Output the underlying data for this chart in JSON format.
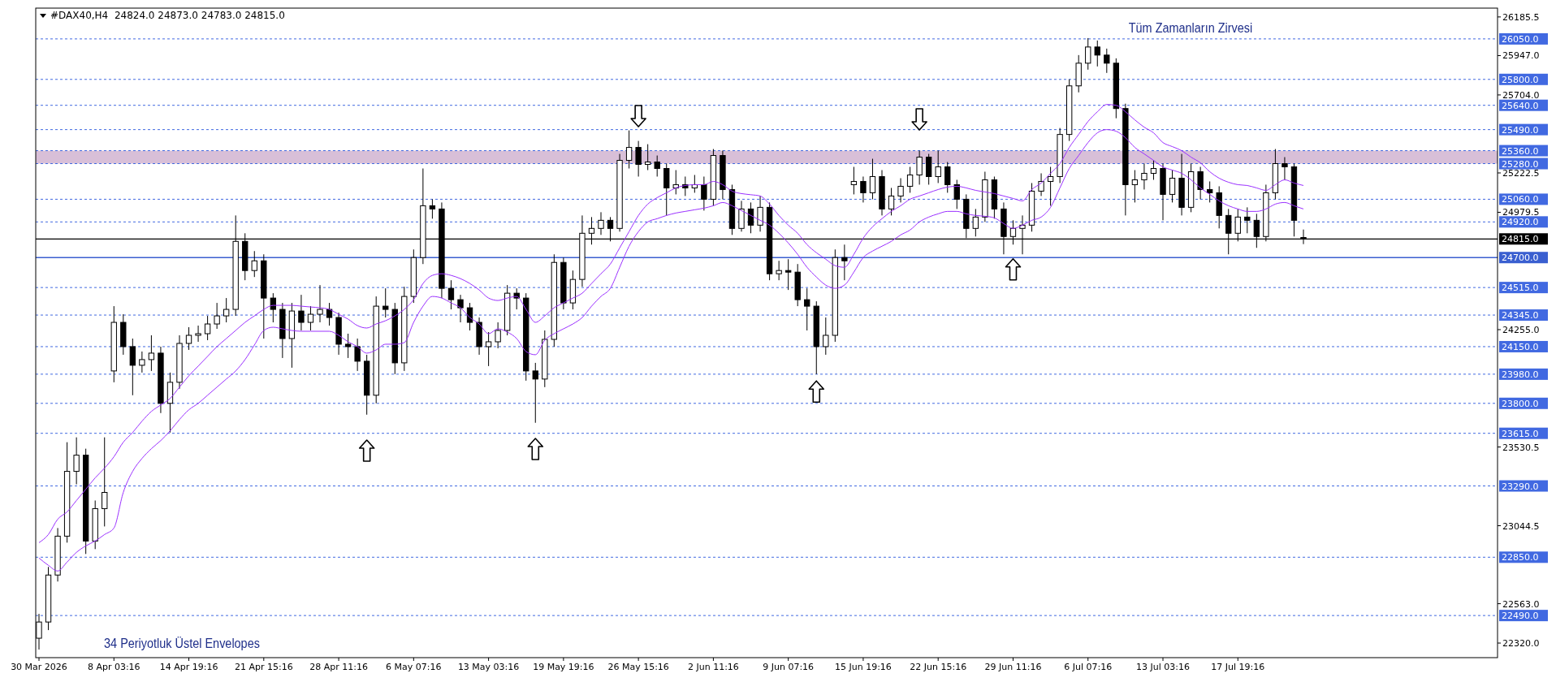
{
  "chart_data": {
    "type": "candlestick",
    "title": "#DAX40,H4  24824.0 24873.0 24783.0 24815.0",
    "annotations": [
      "Tüm Zamanların Zirvesi",
      "34 Periyotluk Üstel Envelopes"
    ],
    "categories": [
      "30 Mar 2026",
      null,
      null,
      null,
      null,
      null,
      null,
      null,
      "8 Apr 03:16",
      null,
      null,
      null,
      null,
      null,
      null,
      null,
      "14 Apr 19:16",
      null,
      null,
      null,
      null,
      null,
      null,
      null,
      "21 Apr 15:16",
      null,
      null,
      null,
      null,
      null,
      null,
      null,
      "28 Apr 11:16",
      null,
      null,
      null,
      null,
      null,
      null,
      null,
      "6 May 07:16",
      null,
      null,
      null,
      null,
      null,
      null,
      null,
      "13 May 03:16",
      null,
      null,
      null,
      null,
      null,
      null,
      null,
      "19 May 19:16",
      null,
      null,
      null,
      null,
      null,
      null,
      null,
      "26 May 15:16",
      null,
      null,
      null,
      null,
      null,
      null,
      null,
      "2 Jun 11:16",
      null,
      null,
      null,
      null,
      null,
      null,
      null,
      "9 Jun 07:16",
      null,
      null,
      null,
      null,
      null,
      null,
      null,
      "15 Jun 19:16",
      null,
      null,
      null,
      null,
      null,
      null,
      null,
      "22 Jun 15:16",
      null,
      null,
      null,
      null,
      null,
      null,
      null,
      "29 Jun 11:16",
      null,
      null,
      null,
      null,
      null,
      null,
      null,
      "6 Jul 07:16",
      null,
      null,
      null,
      null,
      null,
      null,
      null,
      "13 Jul 03:16",
      null,
      null,
      null,
      null,
      null,
      null,
      null,
      "17 Jul 19:16",
      null,
      null,
      null,
      null,
      null,
      null,
      null
    ],
    "ohlc": [
      [
        22350,
        22500,
        22280,
        22450
      ],
      [
        22450,
        22790,
        22400,
        22740
      ],
      [
        22740,
        23030,
        22700,
        22980
      ],
      [
        22980,
        23560,
        22940,
        23380
      ],
      [
        23380,
        23590,
        23300,
        23480
      ],
      [
        23480,
        23520,
        22870,
        22950
      ],
      [
        22950,
        23200,
        22900,
        23150
      ],
      [
        23150,
        23590,
        23040,
        23250
      ],
      [
        24000,
        24400,
        23930,
        24300
      ],
      [
        24300,
        24350,
        24100,
        24150
      ],
      [
        24150,
        24200,
        23850,
        24035
      ],
      [
        24035,
        24120,
        23990,
        24070
      ],
      [
        24070,
        24220,
        24000,
        24110
      ],
      [
        24110,
        24150,
        23740,
        23800
      ],
      [
        23800,
        23990,
        23620,
        23930
      ],
      [
        23930,
        24220,
        23890,
        24170
      ],
      [
        24170,
        24270,
        24130,
        24220
      ],
      [
        24220,
        24280,
        24180,
        24230
      ],
      [
        24230,
        24340,
        24190,
        24290
      ],
      [
        24290,
        24420,
        24260,
        24340
      ],
      [
        24340,
        24450,
        24300,
        24380
      ],
      [
        24380,
        24960,
        24340,
        24800
      ],
      [
        24800,
        24850,
        24560,
        24620
      ],
      [
        24620,
        24740,
        24580,
        24680
      ],
      [
        24680,
        24720,
        24200,
        24450
      ],
      [
        24450,
        24480,
        24300,
        24380
      ],
      [
        24380,
        24420,
        24080,
        24200
      ],
      [
        24200,
        24420,
        24020,
        24370
      ],
      [
        24370,
        24470,
        24250,
        24300
      ],
      [
        24300,
        24400,
        24250,
        24350
      ],
      [
        24350,
        24530,
        24300,
        24380
      ],
      [
        24380,
        24420,
        24280,
        24330
      ],
      [
        24330,
        24360,
        24100,
        24165
      ],
      [
        24165,
        24230,
        24080,
        24150
      ],
      [
        24150,
        24200,
        24000,
        24060
      ],
      [
        24060,
        24100,
        23730,
        23850
      ],
      [
        23850,
        24460,
        23800,
        24400
      ],
      [
        24400,
        24510,
        24330,
        24380
      ],
      [
        24380,
        24420,
        23980,
        24050
      ],
      [
        24050,
        24520,
        24000,
        24460
      ],
      [
        24460,
        24750,
        24420,
        24700
      ],
      [
        24700,
        25250,
        24660,
        25020
      ],
      [
        25020,
        25060,
        24940,
        25000
      ],
      [
        25000,
        25040,
        24450,
        24510
      ],
      [
        24510,
        24560,
        24380,
        24440
      ],
      [
        24440,
        24470,
        24300,
        24390
      ],
      [
        24390,
        24420,
        24250,
        24300
      ],
      [
        24300,
        24330,
        24100,
        24150
      ],
      [
        24150,
        24240,
        24030,
        24180
      ],
      [
        24180,
        24300,
        24140,
        24250
      ],
      [
        24250,
        24530,
        24220,
        24480
      ],
      [
        24480,
        24510,
        24380,
        24450
      ],
      [
        24450,
        24480,
        23940,
        24000
      ],
      [
        24000,
        24050,
        23680,
        23950
      ],
      [
        23950,
        24250,
        23900,
        24195
      ],
      [
        24195,
        24720,
        24150,
        24670
      ],
      [
        24670,
        24700,
        24380,
        24420
      ],
      [
        24420,
        24620,
        24380,
        24565
      ],
      [
        24565,
        24960,
        24520,
        24850
      ],
      [
        24850,
        24950,
        24780,
        24880
      ],
      [
        24880,
        24980,
        24840,
        24930
      ],
      [
        24930,
        24950,
        24800,
        24880
      ],
      [
        24880,
        25340,
        24860,
        25300
      ],
      [
        25300,
        25485,
        25250,
        25380
      ],
      [
        25380,
        25420,
        25200,
        25275
      ],
      [
        25275,
        25400,
        25240,
        25290
      ],
      [
        25290,
        25330,
        25200,
        25250
      ],
      [
        25250,
        25280,
        24960,
        25130
      ],
      [
        25130,
        25240,
        25090,
        25150
      ],
      [
        25150,
        25200,
        25080,
        25130
      ],
      [
        25130,
        25210,
        25100,
        25150
      ],
      [
        25150,
        25200,
        24990,
        25060
      ],
      [
        25060,
        25370,
        25020,
        25330
      ],
      [
        25330,
        25360,
        25060,
        25120
      ],
      [
        25120,
        25150,
        24840,
        24880
      ],
      [
        24880,
        25050,
        24860,
        25000
      ],
      [
        25000,
        25040,
        24850,
        24900
      ],
      [
        24900,
        25080,
        24860,
        25010
      ],
      [
        25010,
        25040,
        24560,
        24600
      ],
      [
        24600,
        24680,
        24560,
        24620
      ],
      [
        24620,
        24690,
        24500,
        24610
      ],
      [
        24610,
        24660,
        24400,
        24440
      ],
      [
        24440,
        24510,
        24250,
        24400
      ],
      [
        24400,
        24430,
        23980,
        24150
      ],
      [
        24150,
        24330,
        24100,
        24220
      ],
      [
        24220,
        24750,
        24180,
        24700
      ],
      [
        24700,
        24780,
        24560,
        24680
      ],
      [
        25150,
        25260,
        25090,
        25170
      ],
      [
        25170,
        25200,
        25040,
        25100
      ],
      [
        25100,
        25310,
        25060,
        25200
      ],
      [
        25200,
        25240,
        24960,
        25000
      ],
      [
        25000,
        25130,
        24960,
        25080
      ],
      [
        25080,
        25190,
        25040,
        25140
      ],
      [
        25140,
        25260,
        25100,
        25210
      ],
      [
        25210,
        25360,
        25150,
        25320
      ],
      [
        25320,
        25340,
        25150,
        25200
      ],
      [
        25200,
        25360,
        25160,
        25260
      ],
      [
        25260,
        25290,
        25100,
        25150
      ],
      [
        25150,
        25180,
        25000,
        25060
      ],
      [
        25060,
        25090,
        24820,
        24880
      ],
      [
        24880,
        25000,
        24830,
        24950
      ],
      [
        24950,
        25230,
        24920,
        25180
      ],
      [
        25180,
        25200,
        24940,
        25000
      ],
      [
        25000,
        25040,
        24720,
        24830
      ],
      [
        24830,
        24930,
        24780,
        24880
      ],
      [
        24880,
        24960,
        24720,
        24900
      ],
      [
        24900,
        25160,
        24860,
        25110
      ],
      [
        25110,
        25220,
        25080,
        25170
      ],
      [
        25170,
        25260,
        25020,
        25200
      ],
      [
        25200,
        25500,
        25160,
        25460
      ],
      [
        25460,
        25800,
        25420,
        25760
      ],
      [
        25760,
        25950,
        25720,
        25900
      ],
      [
        25900,
        26055,
        25860,
        26000
      ],
      [
        26000,
        26040,
        25880,
        25950
      ],
      [
        25950,
        25990,
        25840,
        25900
      ],
      [
        25900,
        25930,
        25560,
        25620
      ],
      [
        25620,
        25650,
        24960,
        25150
      ],
      [
        25150,
        25240,
        25040,
        25180
      ],
      [
        25180,
        25280,
        25120,
        25220
      ],
      [
        25220,
        25300,
        25180,
        25250
      ],
      [
        25250,
        25280,
        24930,
        25090
      ],
      [
        25090,
        25240,
        25040,
        25190
      ],
      [
        25190,
        25340,
        24960,
        25010
      ],
      [
        25010,
        25280,
        24980,
        25230
      ],
      [
        25230,
        25260,
        25060,
        25120
      ],
      [
        25120,
        25170,
        25040,
        25100
      ],
      [
        25100,
        25140,
        24880,
        24960
      ],
      [
        24960,
        25000,
        24720,
        24850
      ],
      [
        24850,
        25000,
        24800,
        24950
      ],
      [
        24950,
        25010,
        24850,
        24930
      ],
      [
        24930,
        24970,
        24760,
        24830
      ],
      [
        24830,
        25150,
        24800,
        25100
      ],
      [
        25100,
        25370,
        25060,
        25280
      ],
      [
        25280,
        25320,
        25180,
        25260
      ],
      [
        25260,
        25280,
        24830,
        24930
      ],
      [
        24824,
        24873,
        24783,
        24815
      ]
    ],
    "series": [
      {
        "type": "line",
        "color": "#9b30ff",
        "values": [
          22940,
          22990,
          23085,
          23130,
          23200,
          23270,
          23340,
          23400,
          23470,
          23560,
          23620,
          23690,
          23750,
          23790,
          23830,
          23900,
          23970,
          24030,
          24090,
          24150,
          24200,
          24250,
          24300,
          24340,
          24380,
          24405,
          24405,
          24405,
          24400,
          24395,
          24390,
          24380,
          24350,
          24320,
          24280,
          24265,
          24290,
          24310,
          24340,
          24380,
          24440,
          24540,
          24590,
          24600,
          24590,
          24570,
          24540,
          24500,
          24450,
          24435,
          24450,
          24460,
          24380,
          24300,
          24340,
          24390,
          24420,
          24450,
          24480,
          24540,
          24600,
          24660,
          24760,
          24860,
          24960,
          25030,
          25070,
          25100,
          25130,
          25145,
          25150,
          25150,
          25170,
          25150,
          25110,
          25095,
          25088,
          25080,
          25030,
          24960,
          24900,
          24850,
          24780,
          24730,
          24690,
          24650,
          24640,
          24720,
          24820,
          24890,
          24940,
          24985,
          25020,
          25060,
          25080,
          25100,
          25120,
          25135,
          25140,
          25130,
          25115,
          25105,
          25095,
          25080,
          25065,
          25050,
          25120,
          25160,
          25220,
          25280,
          25380,
          25460,
          25540,
          25600,
          25645,
          25640,
          25600,
          25550,
          25505,
          25470,
          25410,
          25385,
          25360,
          25320,
          25285,
          25230,
          25190,
          25165,
          25150,
          25145,
          25130,
          25115,
          25150,
          25180,
          25160,
          25145
        ]
      },
      {
        "type": "line",
        "color": "#9b30ff",
        "values": [
          22845,
          22800,
          22765,
          22820,
          22880,
          22920,
          22950,
          22990,
          23030,
          23250,
          23380,
          23460,
          23520,
          23570,
          23630,
          23700,
          23760,
          23800,
          23850,
          23900,
          23950,
          24000,
          24070,
          24160,
          24250,
          24270,
          24260,
          24250,
          24245,
          24245,
          24245,
          24245,
          24220,
          24180,
          24150,
          24110,
          24130,
          24165,
          24165,
          24175,
          24300,
          24400,
          24460,
          24450,
          24420,
          24390,
          24330,
          24290,
          24230,
          24260,
          24240,
          24200,
          24120,
          24100,
          24190,
          24230,
          24260,
          24290,
          24330,
          24400,
          24460,
          24510,
          24640,
          24770,
          24860,
          24920,
          24940,
          24960,
          24975,
          24985,
          24995,
          25005,
          25020,
          25040,
          25020,
          24990,
          24960,
          24930,
          24900,
          24850,
          24790,
          24720,
          24640,
          24580,
          24530,
          24510,
          24530,
          24610,
          24700,
          24740,
          24770,
          24800,
          24840,
          24870,
          24920,
          24950,
          24970,
          24985,
          24985,
          24970,
          24960,
          24955,
          24945,
          24910,
          24880,
          24900,
          24930,
          24950,
          25010,
          25130,
          25250,
          25330,
          25410,
          25470,
          25490,
          25480,
          25440,
          25380,
          25340,
          25300,
          25260,
          25240,
          25220,
          25180,
          25130,
          25090,
          25050,
          25020,
          25000,
          24985,
          24985,
          25000,
          25030,
          25040,
          25020,
          25000
        ]
      }
    ],
    "ylim": [
      22230,
      26240
    ],
    "yticks": [
      {
        "value": 26185.5,
        "label": "26185.5"
      },
      {
        "value": 25947,
        "label": "25947.0"
      },
      {
        "value": 25704,
        "label": "25704.0"
      },
      {
        "value": 25222.5,
        "label": "25222.5"
      },
      {
        "value": 24979.5,
        "label": "24979.5"
      },
      {
        "value": 24255,
        "label": "24255.0"
      },
      {
        "value": 23530.5,
        "label": "23530.5"
      },
      {
        "value": 23044.5,
        "label": "23044.5"
      },
      {
        "value": 22563,
        "label": "22563.0"
      },
      {
        "value": 22320,
        "label": "22320.0"
      }
    ],
    "ref_lines": [
      {
        "axis": "y",
        "value": 26050,
        "label": "26050.0",
        "color": "#4169e1",
        "line_style": "dashed"
      },
      {
        "axis": "y",
        "value": 25800,
        "label": "25800.0",
        "color": "#4169e1",
        "line_style": "dashed"
      },
      {
        "axis": "y",
        "value": 25640,
        "label": "25640.0",
        "color": "#4169e1",
        "line_style": "dashed"
      },
      {
        "axis": "y",
        "value": 25490,
        "label": "25490.0",
        "color": "#4169e1",
        "line_style": "dashed"
      },
      {
        "axis": "y",
        "value": 25360,
        "label": "25360.0",
        "color": "#4169e1",
        "line_style": "dashed"
      },
      {
        "axis": "y",
        "value": 25280,
        "label": "25280.0",
        "color": "#4169e1",
        "line_style": "dashed"
      },
      {
        "axis": "y",
        "value": 25060,
        "label": "25060.0",
        "color": "#4169e1",
        "line_style": "dashed"
      },
      {
        "axis": "y",
        "value": 24920,
        "label": "24920.0",
        "color": "#4169e1",
        "line_style": "dashed"
      },
      {
        "axis": "y",
        "value": 24815,
        "label": "24815.0",
        "color": "#000000",
        "line_style": "solid"
      },
      {
        "axis": "y",
        "value": 24700,
        "label": "24700.0",
        "color": "#3a5fd0",
        "line_style": "solid"
      },
      {
        "axis": "y",
        "value": 24515,
        "label": "24515.0",
        "color": "#4169e1",
        "line_style": "dashed"
      },
      {
        "axis": "y",
        "value": 24345,
        "label": "24345.0",
        "color": "#4169e1",
        "line_style": "dashed"
      },
      {
        "axis": "y",
        "value": 24150,
        "label": "24150.0",
        "color": "#4169e1",
        "line_style": "dashed"
      },
      {
        "axis": "y",
        "value": 23980,
        "label": "23980.0",
        "color": "#4169e1",
        "line_style": "dashed"
      },
      {
        "axis": "y",
        "value": 23800,
        "label": "23800.0",
        "color": "#4169e1",
        "line_style": "dashed"
      },
      {
        "axis": "y",
        "value": 23615,
        "label": "23615.0",
        "color": "#4169e1",
        "line_style": "dashed"
      },
      {
        "axis": "y",
        "value": 23290,
        "label": "23290.0",
        "color": "#4169e1",
        "line_style": "dashed"
      },
      {
        "axis": "y",
        "value": 22850,
        "label": "22850.0",
        "color": "#4169e1",
        "line_style": "dashed"
      },
      {
        "axis": "y",
        "value": 22490,
        "label": "22490.0",
        "color": "#4169e1",
        "line_style": "dashed"
      }
    ],
    "bands": [
      {
        "axis": "y",
        "from": 25280,
        "to": 25360,
        "color": "#d8bfd8"
      }
    ]
  }
}
